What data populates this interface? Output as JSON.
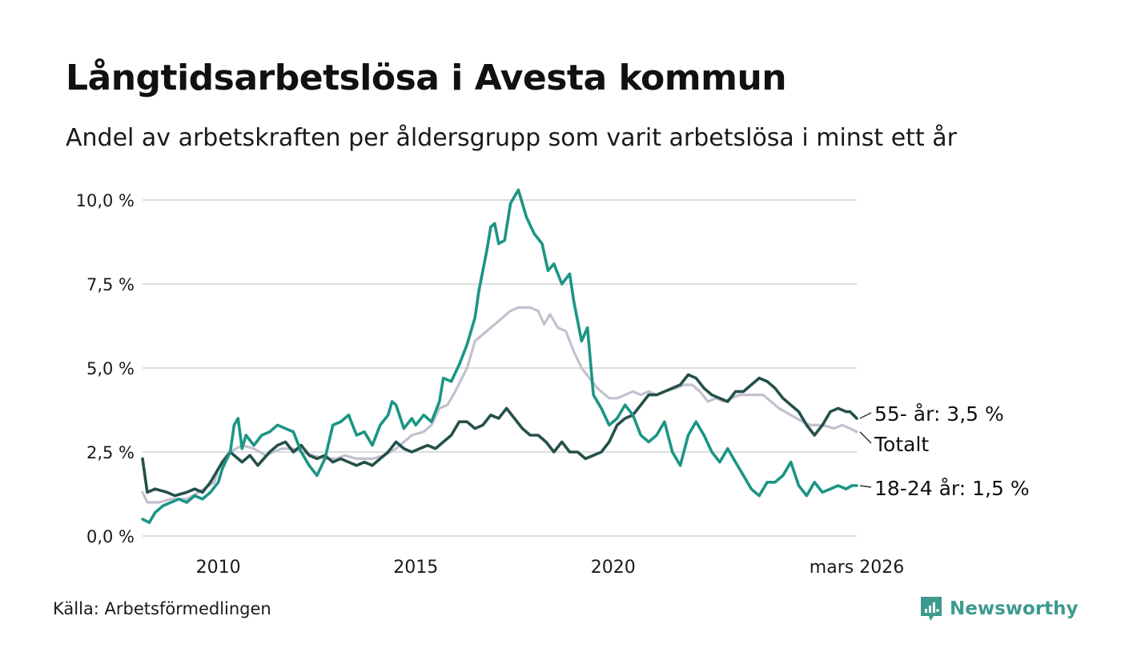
{
  "title": "Långtidsarbetslösa i Avesta kommun",
  "subtitle": "Andel av arbetskraften per åldersgrupp som varit arbetslösa i minst ett år",
  "source": "Källa: Arbetsförmedlingen",
  "brand": "Newsworthy",
  "colors": {
    "young": "#1b9584",
    "senior": "#24504a",
    "total": "#c4c0d0",
    "grid": "#dddddd",
    "brand": "#3d9b8e"
  },
  "chart_data": {
    "type": "line",
    "title": "Långtidsarbetslösa i Avesta kommun",
    "xlabel": "",
    "ylabel": "",
    "xlim": [
      2008.08,
      2026.17
    ],
    "ylim": [
      0,
      10
    ],
    "y_ticks": [
      0,
      2.5,
      5,
      7.5,
      10
    ],
    "y_tick_labels": [
      "0,0 %",
      "2,5 %",
      "5,0 %",
      "7,5 %",
      "10,0 %"
    ],
    "x_ticks": [
      2010,
      2015,
      2020,
      2026.17
    ],
    "x_tick_labels": [
      "2010",
      "2015",
      "2020",
      "mars 2026"
    ],
    "grid": true,
    "series": [
      {
        "key": "total",
        "name": "Totalt",
        "label": "Totalt",
        "color": "#c4c0d0",
        "points": [
          [
            2008.08,
            1.3
          ],
          [
            2008.2,
            1.0
          ],
          [
            2008.5,
            1.0
          ],
          [
            2008.8,
            1.1
          ],
          [
            2009.2,
            1.1
          ],
          [
            2009.5,
            1.3
          ],
          [
            2009.9,
            1.6
          ],
          [
            2010.0,
            2.0
          ],
          [
            2010.3,
            2.5
          ],
          [
            2010.6,
            2.7
          ],
          [
            2010.9,
            2.6
          ],
          [
            2011.2,
            2.4
          ],
          [
            2011.6,
            2.6
          ],
          [
            2011.9,
            2.6
          ],
          [
            2012.1,
            2.5
          ],
          [
            2012.4,
            2.4
          ],
          [
            2012.7,
            2.3
          ],
          [
            2013.0,
            2.3
          ],
          [
            2013.2,
            2.4
          ],
          [
            2013.5,
            2.3
          ],
          [
            2013.9,
            2.3
          ],
          [
            2014.2,
            2.4
          ],
          [
            2014.5,
            2.6
          ],
          [
            2014.7,
            2.8
          ],
          [
            2014.9,
            3.0
          ],
          [
            2015.2,
            3.1
          ],
          [
            2015.4,
            3.3
          ],
          [
            2015.6,
            3.8
          ],
          [
            2015.8,
            3.9
          ],
          [
            2016.0,
            4.3
          ],
          [
            2016.3,
            5.0
          ],
          [
            2016.5,
            5.8
          ],
          [
            2016.7,
            6.0
          ],
          [
            2016.9,
            6.2
          ],
          [
            2017.2,
            6.5
          ],
          [
            2017.4,
            6.7
          ],
          [
            2017.6,
            6.8
          ],
          [
            2017.9,
            6.8
          ],
          [
            2018.1,
            6.7
          ],
          [
            2018.25,
            6.3
          ],
          [
            2018.4,
            6.6
          ],
          [
            2018.6,
            6.2
          ],
          [
            2018.8,
            6.1
          ],
          [
            2019.0,
            5.5
          ],
          [
            2019.2,
            5.0
          ],
          [
            2019.4,
            4.7
          ],
          [
            2019.6,
            4.4
          ],
          [
            2019.9,
            4.1
          ],
          [
            2020.1,
            4.1
          ],
          [
            2020.3,
            4.2
          ],
          [
            2020.5,
            4.3
          ],
          [
            2020.7,
            4.2
          ],
          [
            2020.9,
            4.3
          ],
          [
            2021.1,
            4.2
          ],
          [
            2021.3,
            4.3
          ],
          [
            2021.6,
            4.4
          ],
          [
            2021.8,
            4.5
          ],
          [
            2022.0,
            4.5
          ],
          [
            2022.2,
            4.3
          ],
          [
            2022.4,
            4.0
          ],
          [
            2022.6,
            4.1
          ],
          [
            2022.8,
            4.0
          ],
          [
            2023.0,
            4.1
          ],
          [
            2023.2,
            4.2
          ],
          [
            2023.5,
            4.2
          ],
          [
            2023.8,
            4.2
          ],
          [
            2024.0,
            4.0
          ],
          [
            2024.2,
            3.8
          ],
          [
            2024.5,
            3.6
          ],
          [
            2024.8,
            3.4
          ],
          [
            2025.0,
            3.3
          ],
          [
            2025.3,
            3.3
          ],
          [
            2025.6,
            3.2
          ],
          [
            2025.8,
            3.3
          ],
          [
            2026.0,
            3.2
          ],
          [
            2026.17,
            3.1
          ]
        ]
      },
      {
        "key": "senior",
        "name": "55- år",
        "label": "55- år: 3,5 %",
        "color": "#24504a",
        "points": [
          [
            2008.08,
            2.3
          ],
          [
            2008.2,
            1.3
          ],
          [
            2008.4,
            1.4
          ],
          [
            2008.7,
            1.3
          ],
          [
            2008.9,
            1.2
          ],
          [
            2009.2,
            1.3
          ],
          [
            2009.4,
            1.4
          ],
          [
            2009.6,
            1.3
          ],
          [
            2009.8,
            1.6
          ],
          [
            2010.0,
            2.0
          ],
          [
            2010.1,
            2.2
          ],
          [
            2010.3,
            2.5
          ],
          [
            2010.5,
            2.3
          ],
          [
            2010.6,
            2.2
          ],
          [
            2010.8,
            2.4
          ],
          [
            2011.0,
            2.1
          ],
          [
            2011.3,
            2.5
          ],
          [
            2011.5,
            2.7
          ],
          [
            2011.7,
            2.8
          ],
          [
            2011.9,
            2.5
          ],
          [
            2012.1,
            2.7
          ],
          [
            2012.3,
            2.4
          ],
          [
            2012.5,
            2.3
          ],
          [
            2012.7,
            2.4
          ],
          [
            2012.9,
            2.2
          ],
          [
            2013.1,
            2.3
          ],
          [
            2013.3,
            2.2
          ],
          [
            2013.5,
            2.1
          ],
          [
            2013.7,
            2.2
          ],
          [
            2013.9,
            2.1
          ],
          [
            2014.1,
            2.3
          ],
          [
            2014.3,
            2.5
          ],
          [
            2014.5,
            2.8
          ],
          [
            2014.7,
            2.6
          ],
          [
            2014.9,
            2.5
          ],
          [
            2015.1,
            2.6
          ],
          [
            2015.3,
            2.7
          ],
          [
            2015.5,
            2.6
          ],
          [
            2015.7,
            2.8
          ],
          [
            2015.9,
            3.0
          ],
          [
            2016.1,
            3.4
          ],
          [
            2016.3,
            3.4
          ],
          [
            2016.5,
            3.2
          ],
          [
            2016.7,
            3.3
          ],
          [
            2016.9,
            3.6
          ],
          [
            2017.1,
            3.5
          ],
          [
            2017.3,
            3.8
          ],
          [
            2017.5,
            3.5
          ],
          [
            2017.7,
            3.2
          ],
          [
            2017.9,
            3.0
          ],
          [
            2018.1,
            3.0
          ],
          [
            2018.3,
            2.8
          ],
          [
            2018.5,
            2.5
          ],
          [
            2018.7,
            2.8
          ],
          [
            2018.9,
            2.5
          ],
          [
            2019.1,
            2.5
          ],
          [
            2019.3,
            2.3
          ],
          [
            2019.5,
            2.4
          ],
          [
            2019.7,
            2.5
          ],
          [
            2019.9,
            2.8
          ],
          [
            2020.1,
            3.3
          ],
          [
            2020.3,
            3.5
          ],
          [
            2020.5,
            3.6
          ],
          [
            2020.7,
            3.9
          ],
          [
            2020.9,
            4.2
          ],
          [
            2021.1,
            4.2
          ],
          [
            2021.3,
            4.3
          ],
          [
            2021.5,
            4.4
          ],
          [
            2021.7,
            4.5
          ],
          [
            2021.9,
            4.8
          ],
          [
            2022.1,
            4.7
          ],
          [
            2022.3,
            4.4
          ],
          [
            2022.5,
            4.2
          ],
          [
            2022.7,
            4.1
          ],
          [
            2022.9,
            4.0
          ],
          [
            2023.1,
            4.3
          ],
          [
            2023.3,
            4.3
          ],
          [
            2023.5,
            4.5
          ],
          [
            2023.7,
            4.7
          ],
          [
            2023.9,
            4.6
          ],
          [
            2024.1,
            4.4
          ],
          [
            2024.3,
            4.1
          ],
          [
            2024.5,
            3.9
          ],
          [
            2024.7,
            3.7
          ],
          [
            2024.9,
            3.3
          ],
          [
            2025.1,
            3.0
          ],
          [
            2025.3,
            3.3
          ],
          [
            2025.5,
            3.7
          ],
          [
            2025.7,
            3.8
          ],
          [
            2025.9,
            3.7
          ],
          [
            2026.0,
            3.7
          ],
          [
            2026.17,
            3.5
          ]
        ]
      },
      {
        "key": "young",
        "name": "18-24 år",
        "label": "18-24 år: 1,5 %",
        "color": "#1b9584",
        "points": [
          [
            2008.08,
            0.5
          ],
          [
            2008.25,
            0.4
          ],
          [
            2008.4,
            0.7
          ],
          [
            2008.6,
            0.9
          ],
          [
            2008.8,
            1.0
          ],
          [
            2009.0,
            1.1
          ],
          [
            2009.2,
            1.0
          ],
          [
            2009.4,
            1.2
          ],
          [
            2009.6,
            1.1
          ],
          [
            2009.8,
            1.3
          ],
          [
            2010.0,
            1.6
          ],
          [
            2010.1,
            2.0
          ],
          [
            2010.3,
            2.5
          ],
          [
            2010.4,
            3.3
          ],
          [
            2010.5,
            3.5
          ],
          [
            2010.6,
            2.6
          ],
          [
            2010.7,
            3.0
          ],
          [
            2010.9,
            2.7
          ],
          [
            2011.1,
            3.0
          ],
          [
            2011.3,
            3.1
          ],
          [
            2011.5,
            3.3
          ],
          [
            2011.7,
            3.2
          ],
          [
            2011.9,
            3.1
          ],
          [
            2012.1,
            2.5
          ],
          [
            2012.3,
            2.1
          ],
          [
            2012.5,
            1.8
          ],
          [
            2012.7,
            2.3
          ],
          [
            2012.9,
            3.3
          ],
          [
            2013.1,
            3.4
          ],
          [
            2013.3,
            3.6
          ],
          [
            2013.5,
            3.0
          ],
          [
            2013.7,
            3.1
          ],
          [
            2013.9,
            2.7
          ],
          [
            2014.1,
            3.3
          ],
          [
            2014.3,
            3.6
          ],
          [
            2014.4,
            4.0
          ],
          [
            2014.5,
            3.9
          ],
          [
            2014.7,
            3.2
          ],
          [
            2014.9,
            3.5
          ],
          [
            2015.0,
            3.3
          ],
          [
            2015.2,
            3.6
          ],
          [
            2015.4,
            3.4
          ],
          [
            2015.6,
            4.0
          ],
          [
            2015.7,
            4.7
          ],
          [
            2015.9,
            4.6
          ],
          [
            2016.1,
            5.1
          ],
          [
            2016.3,
            5.7
          ],
          [
            2016.5,
            6.5
          ],
          [
            2016.6,
            7.3
          ],
          [
            2016.8,
            8.5
          ],
          [
            2016.9,
            9.2
          ],
          [
            2017.0,
            9.3
          ],
          [
            2017.1,
            8.7
          ],
          [
            2017.25,
            8.8
          ],
          [
            2017.4,
            9.9
          ],
          [
            2017.6,
            10.3
          ],
          [
            2017.8,
            9.5
          ],
          [
            2018.0,
            9.0
          ],
          [
            2018.2,
            8.7
          ],
          [
            2018.35,
            7.9
          ],
          [
            2018.5,
            8.1
          ],
          [
            2018.7,
            7.5
          ],
          [
            2018.9,
            7.8
          ],
          [
            2019.0,
            7.0
          ],
          [
            2019.2,
            5.8
          ],
          [
            2019.35,
            6.2
          ],
          [
            2019.5,
            4.2
          ],
          [
            2019.7,
            3.8
          ],
          [
            2019.9,
            3.3
          ],
          [
            2020.1,
            3.5
          ],
          [
            2020.3,
            3.9
          ],
          [
            2020.5,
            3.6
          ],
          [
            2020.7,
            3.0
          ],
          [
            2020.9,
            2.8
          ],
          [
            2021.1,
            3.0
          ],
          [
            2021.3,
            3.4
          ],
          [
            2021.5,
            2.5
          ],
          [
            2021.7,
            2.1
          ],
          [
            2021.9,
            3.0
          ],
          [
            2022.1,
            3.4
          ],
          [
            2022.3,
            3.0
          ],
          [
            2022.5,
            2.5
          ],
          [
            2022.7,
            2.2
          ],
          [
            2022.9,
            2.6
          ],
          [
            2023.1,
            2.2
          ],
          [
            2023.3,
            1.8
          ],
          [
            2023.5,
            1.4
          ],
          [
            2023.7,
            1.2
          ],
          [
            2023.9,
            1.6
          ],
          [
            2024.1,
            1.6
          ],
          [
            2024.3,
            1.8
          ],
          [
            2024.5,
            2.2
          ],
          [
            2024.7,
            1.5
          ],
          [
            2024.9,
            1.2
          ],
          [
            2025.1,
            1.6
          ],
          [
            2025.3,
            1.3
          ],
          [
            2025.5,
            1.4
          ],
          [
            2025.7,
            1.5
          ],
          [
            2025.9,
            1.4
          ],
          [
            2026.05,
            1.5
          ],
          [
            2026.17,
            1.5
          ]
        ]
      }
    ]
  }
}
